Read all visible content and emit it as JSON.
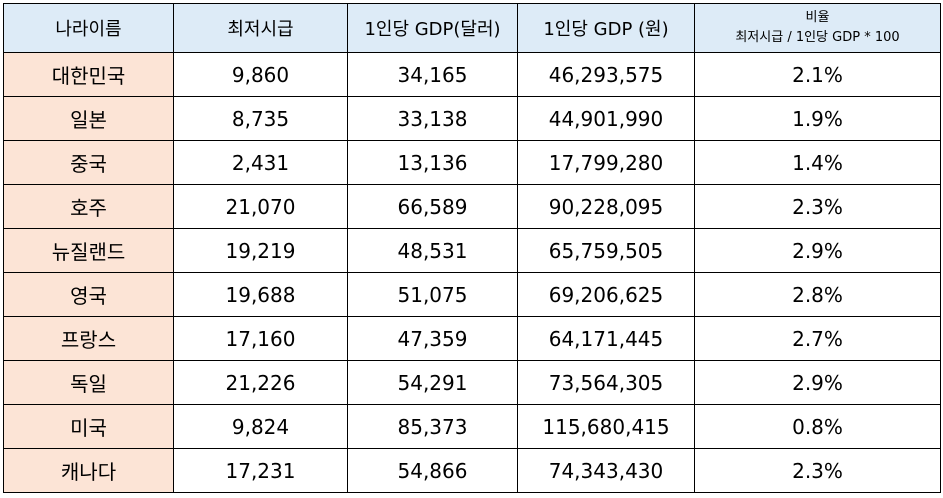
{
  "headers": {
    "country": "나라이름",
    "min_wage": "최저시급",
    "gdp_usd": "1인당 GDP(달러)",
    "gdp_krw": "1인당 GDP (원)",
    "ratio_title": "비율",
    "ratio_formula": "최저시급 / 1인당 GDP * 100"
  },
  "rows": [
    {
      "country": "대한민국",
      "min_wage": "9,860",
      "gdp_usd": "34,165",
      "gdp_krw": "46,293,575",
      "ratio": "2.1%"
    },
    {
      "country": "일본",
      "min_wage": "8,735",
      "gdp_usd": "33,138",
      "gdp_krw": "44,901,990",
      "ratio": "1.9%"
    },
    {
      "country": "중국",
      "min_wage": "2,431",
      "gdp_usd": "13,136",
      "gdp_krw": "17,799,280",
      "ratio": "1.4%"
    },
    {
      "country": "호주",
      "min_wage": "21,070",
      "gdp_usd": "66,589",
      "gdp_krw": "90,228,095",
      "ratio": "2.3%"
    },
    {
      "country": "뉴질랜드",
      "min_wage": "19,219",
      "gdp_usd": "48,531",
      "gdp_krw": "65,759,505",
      "ratio": "2.9%"
    },
    {
      "country": "영국",
      "min_wage": "19,688",
      "gdp_usd": "51,075",
      "gdp_krw": "69,206,625",
      "ratio": "2.8%"
    },
    {
      "country": "프랑스",
      "min_wage": "17,160",
      "gdp_usd": "47,359",
      "gdp_krw": "64,171,445",
      "ratio": "2.7%"
    },
    {
      "country": "독일",
      "min_wage": "21,226",
      "gdp_usd": "54,291",
      "gdp_krw": "73,564,305",
      "ratio": "2.9%"
    },
    {
      "country": "미국",
      "min_wage": "9,824",
      "gdp_usd": "85,373",
      "gdp_krw": "115,680,415",
      "ratio": "0.8%"
    },
    {
      "country": "캐나다",
      "min_wage": "17,231",
      "gdp_usd": "54,866",
      "gdp_krw": "74,343,430",
      "ratio": "2.3%"
    }
  ],
  "colors": {
    "header_fill": "#ddebf7",
    "country_fill": "#fce4d6",
    "border": "#000000"
  }
}
